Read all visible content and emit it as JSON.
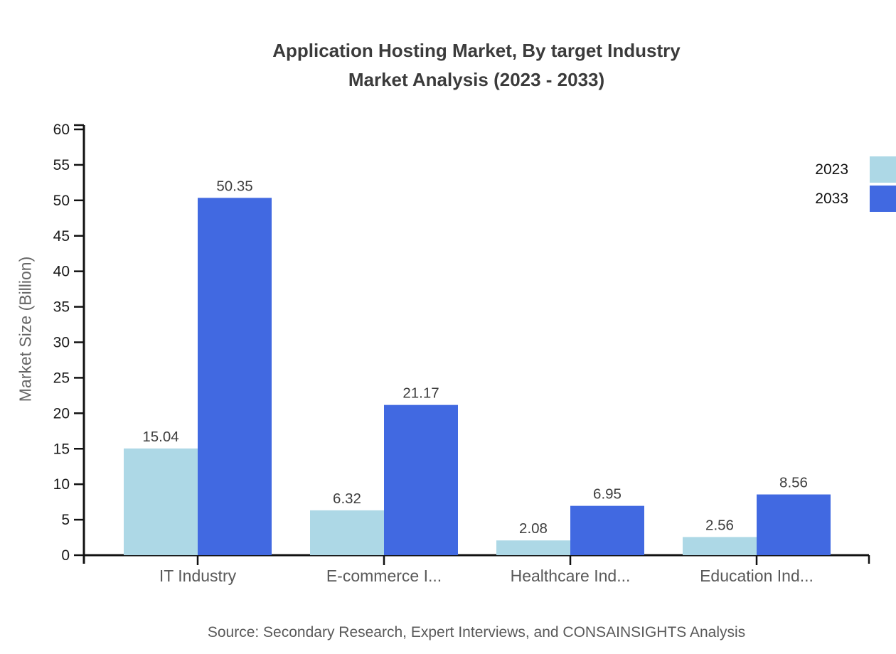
{
  "chart_data": {
    "type": "bar",
    "title_line1": "Application Hosting Market, By target Industry",
    "title_line2": "Market Analysis (2023 - 2033)",
    "ylabel": "Market Size (Billion)",
    "ylim": [
      0,
      60
    ],
    "ytick_step": 5,
    "grid": false,
    "legend_position": "top-right",
    "categories": [
      "IT Industry",
      "E-commerce I...",
      "Healthcare Ind...",
      "Education Ind..."
    ],
    "series": [
      {
        "name": "2023",
        "color": "#ADD8E6",
        "values": [
          15.04,
          6.32,
          2.08,
          2.56
        ]
      },
      {
        "name": "2033",
        "color": "#4169E1",
        "values": [
          50.35,
          21.17,
          6.95,
          8.56
        ]
      }
    ],
    "value_label_format": "2-decimals"
  },
  "footer": {
    "source": "Source: Secondary Research, Expert Interviews, and CONSAINSIGHTS Analysis"
  },
  "colors": {
    "title": "#3b3b3b",
    "axis": "#111111",
    "tick_label": "#1a1a1a",
    "value_label": "#3d3d3d",
    "category_label": "#595959",
    "background": "#ffffff"
  }
}
